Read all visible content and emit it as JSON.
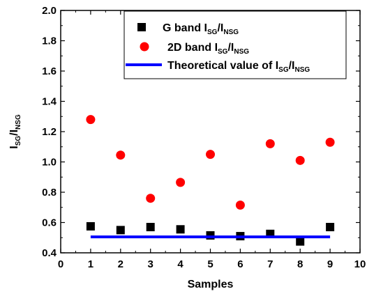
{
  "chart_data": {
    "type": "scatter",
    "xlabel": "Samples",
    "ylabel": {
      "main": "I",
      "sub1": "SG",
      "sep": "/I",
      "sub2": "NSG"
    },
    "xlim": [
      0,
      10
    ],
    "ylim": [
      0.4,
      2.0
    ],
    "x_ticks": [
      "0",
      "1",
      "2",
      "3",
      "4",
      "5",
      "6",
      "7",
      "8",
      "9",
      "10"
    ],
    "y_ticks": [
      "0.4",
      "0.6",
      "0.8",
      "1.0",
      "1.2",
      "1.4",
      "1.6",
      "1.8",
      "2.0"
    ],
    "legend_position": "top-right",
    "grid": false,
    "series": [
      {
        "name": {
          "main": "G band I",
          "sub1": "SG",
          "sep": "/I",
          "sub2": "NSG"
        },
        "marker": "square",
        "color": "#000000",
        "points": [
          {
            "x": 1,
            "y": 0.575
          },
          {
            "x": 2,
            "y": 0.55
          },
          {
            "x": 3,
            "y": 0.57
          },
          {
            "x": 4,
            "y": 0.555
          },
          {
            "x": 5,
            "y": 0.515
          },
          {
            "x": 6,
            "y": 0.51
          },
          {
            "x": 7,
            "y": 0.525
          },
          {
            "x": 8,
            "y": 0.475
          },
          {
            "x": 9,
            "y": 0.57
          }
        ]
      },
      {
        "name": {
          "main": "2D band I",
          "sub1": "SG",
          "sep": "/I",
          "sub2": "NSG"
        },
        "marker": "circle",
        "color": "#ff0000",
        "points": [
          {
            "x": 1,
            "y": 1.28
          },
          {
            "x": 2,
            "y": 1.045
          },
          {
            "x": 3,
            "y": 0.76
          },
          {
            "x": 4,
            "y": 0.865
          },
          {
            "x": 5,
            "y": 1.05
          },
          {
            "x": 6,
            "y": 0.715
          },
          {
            "x": 7,
            "y": 1.12
          },
          {
            "x": 8,
            "y": 1.01
          },
          {
            "x": 9,
            "y": 1.13
          }
        ]
      },
      {
        "name": {
          "main": "Theoretical value of I",
          "sub1": "SG",
          "sep": "/I",
          "sub2": "NSG"
        },
        "marker": "line",
        "color": "#0000ff",
        "points": [
          {
            "x": 1,
            "y": 0.505
          },
          {
            "x": 9,
            "y": 0.505
          }
        ]
      }
    ]
  }
}
